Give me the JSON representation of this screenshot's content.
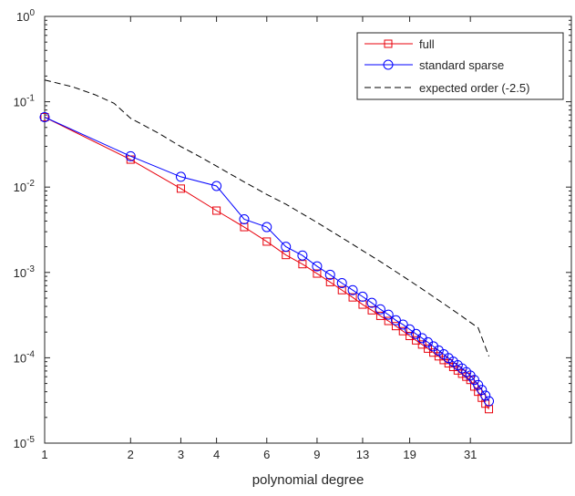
{
  "chart_data": {
    "type": "line",
    "title": "",
    "xlabel": "polynomial degree",
    "ylabel": "",
    "x_scale": "log",
    "y_scale": "log",
    "xlim": [
      1,
      70
    ],
    "ylim": [
      1e-05,
      1
    ],
    "x_ticks": [
      1,
      2,
      3,
      4,
      6,
      9,
      13,
      19,
      31
    ],
    "x_tick_labels": [
      "1",
      "2",
      "3",
      "4",
      "6",
      "9",
      "13",
      "19",
      "31"
    ],
    "y_ticks": [
      1e-05,
      0.0001,
      0.001,
      0.01,
      0.1,
      1
    ],
    "y_tick_labels": [
      {
        "base": "10",
        "exp": "-5"
      },
      {
        "base": "10",
        "exp": "-4"
      },
      {
        "base": "10",
        "exp": "-3"
      },
      {
        "base": "10",
        "exp": "-2"
      },
      {
        "base": "10",
        "exp": "-1"
      },
      {
        "base": "10",
        "exp": "0"
      }
    ],
    "grid": false,
    "legend_position": "top-right",
    "series": [
      {
        "name": "full",
        "color": "#e8000b",
        "marker": "square",
        "dash": "solid",
        "x": [
          1,
          2,
          3,
          4,
          5,
          6,
          7,
          8,
          9,
          10,
          11,
          12,
          13,
          14,
          15,
          16,
          17,
          18,
          19,
          20,
          21,
          22,
          23,
          24,
          25,
          26,
          27,
          28,
          29,
          30,
          31,
          32,
          33,
          34,
          35,
          36
        ],
        "y": [
          0.066,
          0.021,
          0.0096,
          0.0053,
          0.0034,
          0.0023,
          0.0016,
          0.00125,
          0.00097,
          0.00077,
          0.00062,
          0.00051,
          0.00042,
          0.00036,
          0.00031,
          0.00027,
          0.000235,
          0.000205,
          0.00018,
          0.00016,
          0.000143,
          0.000128,
          0.000115,
          0.000104,
          9.4e-05,
          8.6e-05,
          7.8e-05,
          7.1e-05,
          6.5e-05,
          6e-05,
          5.5e-05,
          4.6e-05,
          4e-05,
          3.4e-05,
          2.9e-05,
          2.5e-05
        ]
      },
      {
        "name": "standard sparse",
        "color": "#0000ff",
        "marker": "circle",
        "dash": "solid",
        "x": [
          1,
          2,
          3,
          4,
          5,
          6,
          7,
          8,
          9,
          10,
          11,
          12,
          13,
          14,
          15,
          16,
          17,
          18,
          19,
          20,
          21,
          22,
          23,
          24,
          25,
          26,
          27,
          28,
          29,
          30,
          31,
          32,
          33,
          34,
          35,
          36
        ],
        "y": [
          0.066,
          0.023,
          0.0132,
          0.0103,
          0.0042,
          0.0034,
          0.002,
          0.00158,
          0.00118,
          0.00094,
          0.00075,
          0.00062,
          0.00052,
          0.00044,
          0.00037,
          0.00032,
          0.000275,
          0.000245,
          0.000215,
          0.00019,
          0.00017,
          0.000152,
          0.000136,
          0.000122,
          0.00011,
          9.9e-05,
          9e-05,
          8.2e-05,
          7.5e-05,
          6.8e-05,
          6.2e-05,
          5.5e-05,
          4.8e-05,
          4.2e-05,
          3.6e-05,
          3.1e-05
        ]
      },
      {
        "name": "expected order (-2.5)",
        "color": "#000000",
        "marker": "none",
        "dash": "dashed",
        "x": [
          1,
          1.25,
          1.5,
          1.75,
          2,
          2.5,
          3,
          3.5,
          4,
          5,
          6,
          7,
          8,
          9,
          10,
          11,
          12,
          13,
          15,
          17,
          19,
          21,
          23,
          25,
          27,
          29,
          31,
          33,
          36
        ],
        "y": [
          0.18,
          0.15,
          0.121,
          0.096,
          0.064,
          0.043,
          0.0298,
          0.0227,
          0.0176,
          0.0115,
          0.0082,
          0.0063,
          0.00485,
          0.00385,
          0.0031,
          0.00255,
          0.00213,
          0.0018,
          0.00134,
          0.00102,
          0.0008,
          0.00064,
          0.00052,
          0.00043,
          0.00036,
          0.000305,
          0.00026,
          0.000225,
          0.000104
        ]
      }
    ]
  }
}
